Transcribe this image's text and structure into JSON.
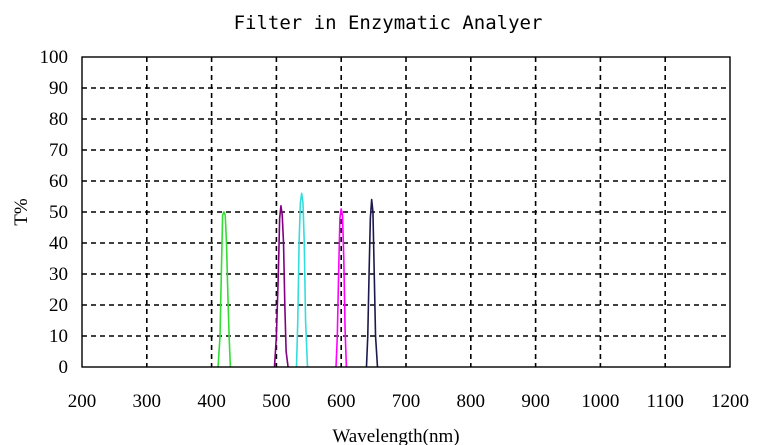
{
  "chart_data": {
    "type": "line",
    "title": "Filter in Enzymatic Analyer",
    "xlabel": "Wavelength(nm)",
    "ylabel": "T%",
    "xlim": [
      200,
      1200
    ],
    "ylim": [
      0,
      100
    ],
    "xticks": [
      200,
      300,
      400,
      500,
      600,
      700,
      800,
      900,
      1000,
      1100,
      1200
    ],
    "yticks": [
      0,
      10,
      20,
      30,
      40,
      50,
      60,
      70,
      80,
      90,
      100
    ],
    "grid": true,
    "series": [
      {
        "color": "#33dd33",
        "x": [
          410,
          413,
          415,
          417,
          419,
          421,
          423,
          425,
          427,
          429
        ],
        "y": [
          0,
          10,
          30,
          49,
          50,
          49,
          40,
          24,
          10,
          0
        ]
      },
      {
        "color": "#800080",
        "x": [
          497,
          500,
          503,
          505,
          507,
          509,
          511,
          513,
          515,
          518
        ],
        "y": [
          0,
          10,
          30,
          48,
          52,
          49,
          40,
          20,
          5,
          0
        ]
      },
      {
        "color": "#33dddd",
        "x": [
          531,
          533,
          535,
          537,
          539,
          541,
          543,
          545,
          548
        ],
        "y": [
          0,
          15,
          40,
          53,
          56,
          53,
          40,
          15,
          0
        ]
      },
      {
        "color": "#ff00ff",
        "x": [
          592,
          594,
          596,
          598,
          600,
          602,
          604,
          606,
          608
        ],
        "y": [
          0,
          10,
          30,
          48,
          51,
          49,
          35,
          12,
          0
        ]
      },
      {
        "color": "#1a1a4d",
        "x": [
          639,
          641,
          643,
          645,
          647,
          649,
          651,
          653,
          656
        ],
        "y": [
          0,
          10,
          30,
          48,
          54,
          50,
          30,
          10,
          0
        ]
      }
    ]
  }
}
